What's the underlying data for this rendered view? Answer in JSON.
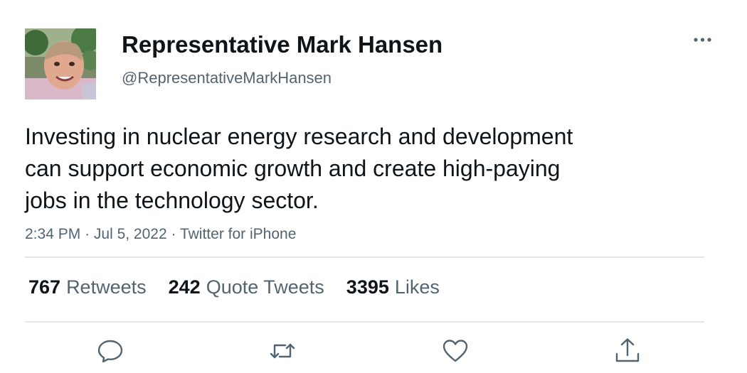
{
  "tweet": {
    "author": {
      "display_name": "Representative Mark Hansen",
      "handle": "@RepresentativeMarkHansen"
    },
    "text": "Investing in nuclear energy research and development\ncan support economic growth and create high-paying\njobs in the technology sector.",
    "time": "2:34 PM",
    "date": "Jul 5, 2022",
    "source": "Twitter for iPhone",
    "separator": "·"
  },
  "stats": [
    {
      "count": "767",
      "label": "Retweets"
    },
    {
      "count": "242",
      "label": "Quote Tweets"
    },
    {
      "count": "3395",
      "label": "Likes"
    }
  ],
  "actions": [
    {
      "icon": "reply-icon"
    },
    {
      "icon": "retweet-icon"
    },
    {
      "icon": "like-icon"
    },
    {
      "icon": "share-icon"
    }
  ],
  "colors": {
    "text_primary": "#0f1419",
    "text_secondary": "#536471",
    "divider": "#e1e6ea"
  }
}
